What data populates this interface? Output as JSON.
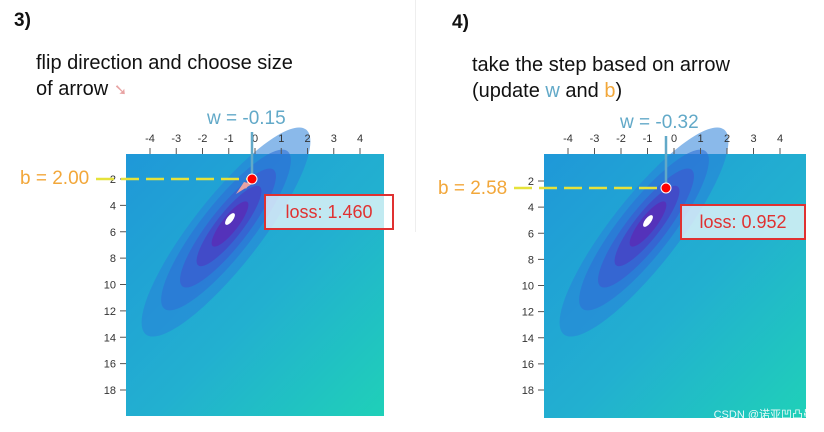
{
  "panel3": {
    "step": "3)",
    "caption_line1": "flip direction and choose size",
    "caption_line2": "of arrow",
    "arrow_glyph": "➘",
    "w_label": "w = -0.15",
    "b_label": "b = 2.00",
    "loss_label": "loss: 1.460",
    "w": -0.15,
    "b": 2.0,
    "x_ticks": [
      "-4",
      "-3",
      "-2",
      "-1",
      "0",
      "1",
      "2",
      "3",
      "4"
    ],
    "y_ticks": [
      "2",
      "4",
      "6",
      "8",
      "10",
      "12",
      "14",
      "16",
      "18"
    ]
  },
  "panel4": {
    "step": "4)",
    "caption_line1": "take the step based on arrow",
    "caption_open": "(update ",
    "caption_w": "w",
    "caption_and": " and ",
    "caption_b": "b",
    "caption_close": ")",
    "w_label": "w = -0.32",
    "b_label": "b = 2.58",
    "loss_label": "loss: 0.952",
    "w": -0.32,
    "b": 2.58,
    "x_ticks": [
      "-4",
      "-3",
      "-2",
      "-1",
      "0",
      "1",
      "2",
      "3",
      "4"
    ],
    "y_ticks": [
      "2",
      "4",
      "6",
      "8",
      "10",
      "12",
      "14",
      "16",
      "18"
    ]
  },
  "watermark": "CSDN @诺亚凹凸曼",
  "colors": {
    "w": "#62a9c8",
    "b": "#f2a73a",
    "loss": "#e03131",
    "guide": "#e6e23a",
    "point": "#ff0000"
  }
}
